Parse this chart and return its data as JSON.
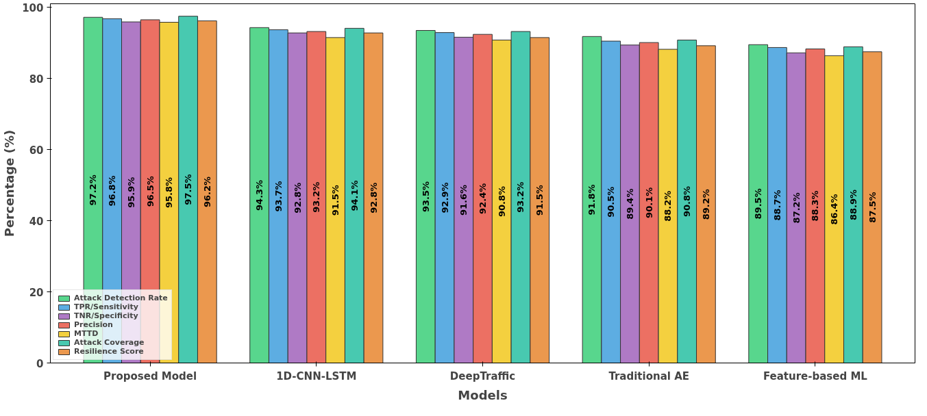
{
  "chart_data": {
    "type": "bar",
    "xlabel": "Models",
    "ylabel": "Percentage (%)",
    "categories": [
      "Proposed Model",
      "1D-CNN-LSTM",
      "DeepTraffic",
      "Traditional AE",
      "Feature-based ML"
    ],
    "series": [
      {
        "name": "Attack Detection Rate",
        "color": "#58d68d",
        "values": [
          97.2,
          94.3,
          93.5,
          91.8,
          89.5
        ],
        "value_labels": [
          "97.2%",
          "94.3%",
          "93.5%",
          "91.8%",
          "89.5%"
        ]
      },
      {
        "name": "TPR/Sensitivity",
        "color": "#5dade2",
        "values": [
          96.8,
          93.7,
          92.9,
          90.5,
          88.7
        ],
        "value_labels": [
          "96.8%",
          "93.7%",
          "92.9%",
          "90.5%",
          "88.7%"
        ]
      },
      {
        "name": "TNR/Specificity",
        "color": "#af7ac5",
        "values": [
          95.9,
          92.8,
          91.6,
          89.4,
          87.2
        ],
        "value_labels": [
          "95.9%",
          "92.8%",
          "91.6%",
          "89.4%",
          "87.2%"
        ]
      },
      {
        "name": "Precision",
        "color": "#ec7063",
        "values": [
          96.5,
          93.2,
          92.4,
          90.1,
          88.3
        ],
        "value_labels": [
          "96.5%",
          "93.2%",
          "92.4%",
          "90.1%",
          "88.3%"
        ]
      },
      {
        "name": "MTTD",
        "color": "#f4d03f",
        "values": [
          95.8,
          91.5,
          90.8,
          88.2,
          86.4
        ],
        "value_labels": [
          "95.8%",
          "91.5%",
          "90.8%",
          "88.2%",
          "86.4%"
        ]
      },
      {
        "name": "Attack Coverage",
        "color": "#48c9b0",
        "values": [
          97.5,
          94.1,
          93.2,
          90.8,
          88.9
        ],
        "value_labels": [
          "97.5%",
          "94.1%",
          "93.2%",
          "90.8%",
          "88.9%"
        ]
      },
      {
        "name": "Resilience Score",
        "color": "#eb984e",
        "values": [
          96.2,
          92.8,
          91.5,
          89.2,
          87.5
        ],
        "value_labels": [
          "96.2%",
          "92.8%",
          "91.5%",
          "89.2%",
          "87.5%"
        ]
      }
    ],
    "ylim": [
      0,
      101
    ],
    "yticks": [
      0,
      20,
      40,
      60,
      80,
      100
    ],
    "grid": false,
    "legend": "bottom left"
  }
}
